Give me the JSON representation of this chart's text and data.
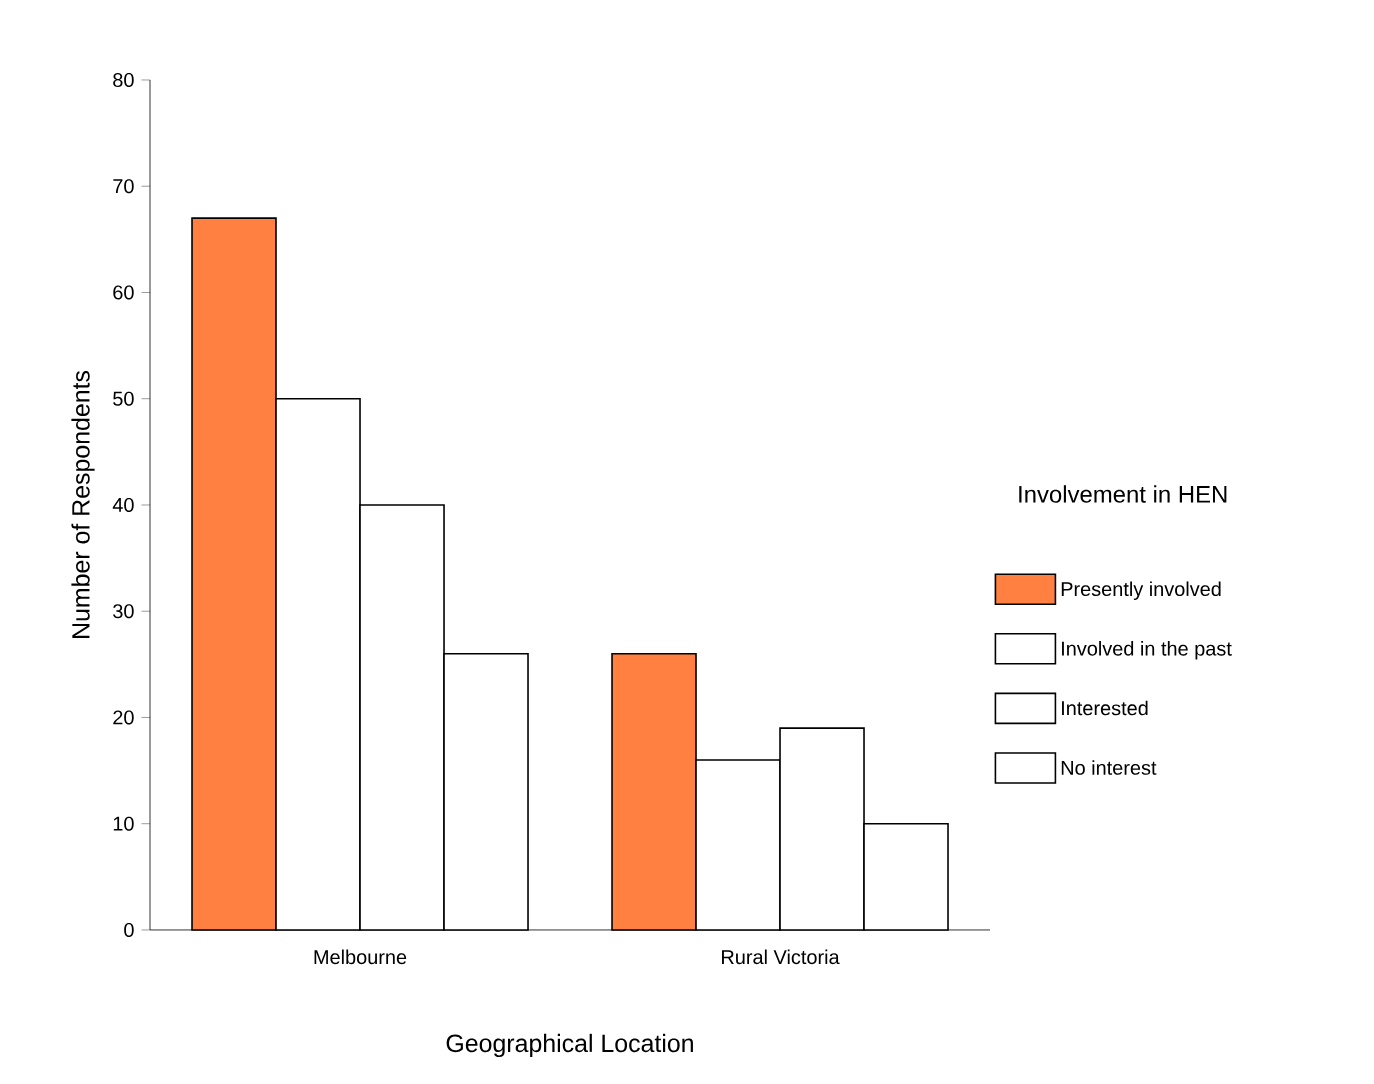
{
  "chart_data": {
    "type": "bar",
    "xlabel": "Geographical Location",
    "ylabel": "Number of Respondents",
    "legend_title": "Involvement in HEN",
    "legend": "right",
    "categories": [
      "Melbourne",
      "Rural Victoria"
    ],
    "series": [
      {
        "name": "Presently involved",
        "color": "#ff8040",
        "values": [
          67,
          26
        ]
      },
      {
        "name": "Involved in the past",
        "color": "#ffffff",
        "values": [
          50,
          16
        ]
      },
      {
        "name": "Interested",
        "color": "#ffffff",
        "values": [
          40,
          19
        ]
      },
      {
        "name": "No interest",
        "color": "#ffffff",
        "values": [
          26,
          10
        ]
      }
    ],
    "ylim": [
      0,
      80
    ],
    "yticks": [
      0,
      10,
      20,
      30,
      40,
      50,
      60,
      70,
      80
    ]
  }
}
